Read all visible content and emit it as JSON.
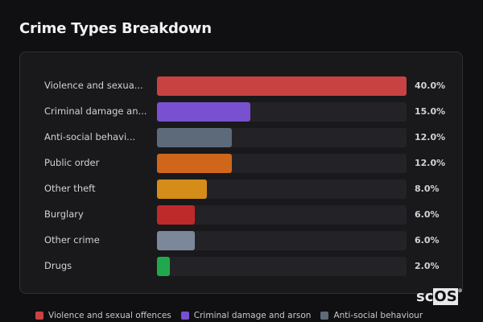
{
  "title": "Crime Types Breakdown",
  "logo": {
    "a": "sc",
    "b": "OS",
    "mark": "®"
  },
  "chart_data": {
    "type": "bar",
    "orientation": "horizontal",
    "title": "Crime Types Breakdown",
    "categories": [
      "Violence and sexual offences",
      "Criminal damage and arson",
      "Anti-social behaviour",
      "Public order",
      "Other theft",
      "Burglary",
      "Other crime",
      "Drugs"
    ],
    "display_labels": [
      "Violence and sexua...",
      "Criminal damage an...",
      "Anti-social behavi...",
      "Public order",
      "Other theft",
      "Burglary",
      "Other crime",
      "Drugs"
    ],
    "values": [
      40.0,
      15.0,
      12.0,
      12.0,
      8.0,
      6.0,
      6.0,
      2.0
    ],
    "value_labels": [
      "40.0%",
      "15.0%",
      "12.0%",
      "12.0%",
      "8.0%",
      "6.0%",
      "6.0%",
      "2.0%"
    ],
    "colors": [
      "#c94242",
      "#7850d0",
      "#5d6a7a",
      "#d0661c",
      "#d38d18",
      "#be2a2a",
      "#7a889a",
      "#22a84c"
    ],
    "xlim": [
      0,
      40
    ],
    "legend": {
      "placement": "bottom",
      "entries": [
        "Violence and sexual offences",
        "Criminal damage and arson",
        "Anti-social behaviour"
      ]
    }
  }
}
